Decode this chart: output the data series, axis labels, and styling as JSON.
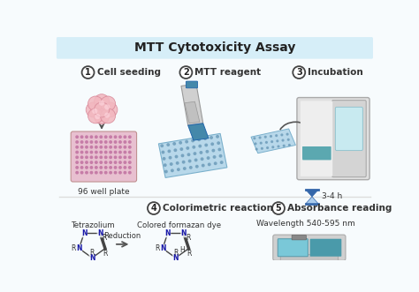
{
  "title": "MTT Cytotoxicity Assay",
  "title_bg": "#d6eef8",
  "bg_color": "#f7fbfd",
  "step_labels": [
    "Cell seeding",
    "MTT reagent",
    "Incubation",
    "Colorimetric reaction",
    "Absorbance reading"
  ],
  "step_numbers": [
    "1",
    "2",
    "3",
    "4",
    "5"
  ],
  "arrow_color": "#555555",
  "pink_cell": "#f0b0b8",
  "pink_cell_edge": "#d88090",
  "plate_pink": "#d4799a",
  "plate_bg": "#e8c0d0",
  "light_blue": "#b8d8e8",
  "blue_dot": "#6699bb",
  "teal": "#4a9aaa",
  "gray_light": "#d8d8d8",
  "gray_mid": "#bbbbbb",
  "gray_dark": "#888888",
  "hourglass_blue": "#3366aa",
  "hourglass_light": "#aaccee",
  "incubator_body": "#e0e0e0",
  "incubator_door": "#cccccc",
  "incubator_window": "#aadde8",
  "incubator_shelf": "#5ba8b0",
  "spec_base": "#d0d0d0",
  "spec_screen": "#7ac8d8",
  "spec_teal": "#4a9aaa",
  "bond_color": "#444444",
  "nitrogen_color": "#1a1aaa",
  "carbon_color": "#333333",
  "divider_color": "#dddddd"
}
